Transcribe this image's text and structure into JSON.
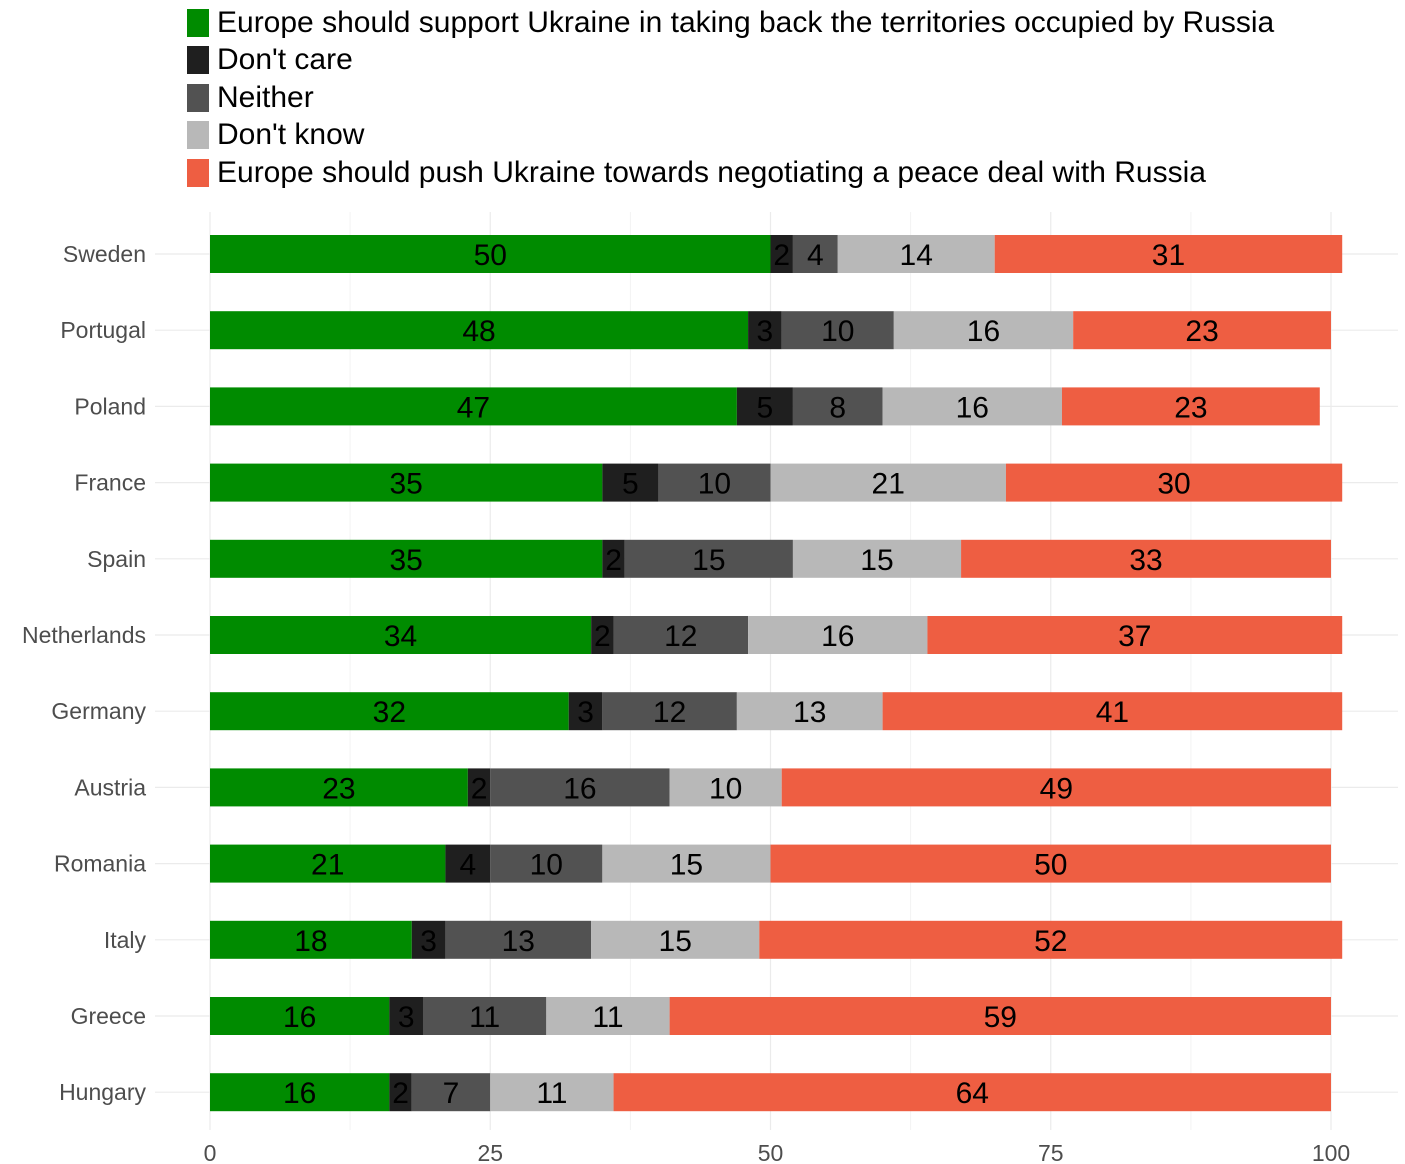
{
  "chart_data": {
    "type": "bar",
    "orientation": "horizontal",
    "stacked": true,
    "categories": [
      "Sweden",
      "Portugal",
      "Poland",
      "France",
      "Spain",
      "Netherlands",
      "Germany",
      "Austria",
      "Romania",
      "Italy",
      "Greece",
      "Hungary"
    ],
    "series": [
      {
        "name": "Europe should support Ukraine in taking back the territories occupied by Russia",
        "color": "#008b00",
        "values": [
          50,
          48,
          47,
          35,
          35,
          34,
          32,
          23,
          21,
          18,
          16,
          16
        ]
      },
      {
        "name": "Don't care",
        "color": "#1f1f1f",
        "values": [
          2,
          3,
          5,
          5,
          2,
          2,
          3,
          2,
          4,
          3,
          3,
          2
        ]
      },
      {
        "name": "Neither",
        "color": "#525252",
        "values": [
          4,
          10,
          8,
          10,
          15,
          12,
          12,
          16,
          10,
          13,
          11,
          7
        ]
      },
      {
        "name": "Don't know",
        "color": "#b8b8b8",
        "values": [
          14,
          16,
          16,
          21,
          15,
          16,
          13,
          10,
          15,
          15,
          11,
          11
        ]
      },
      {
        "name": "Europe should push Ukraine towards negotiating a peace deal with Russia",
        "color": "#ee5e42",
        "values": [
          31,
          23,
          23,
          30,
          33,
          37,
          41,
          49,
          50,
          52,
          59,
          64
        ]
      }
    ],
    "x_ticks": [
      0,
      25,
      50,
      75,
      100
    ],
    "xlim": [
      0,
      100
    ],
    "title": "",
    "xlabel": "",
    "ylabel": "",
    "grid": true,
    "legend_position": "top"
  }
}
